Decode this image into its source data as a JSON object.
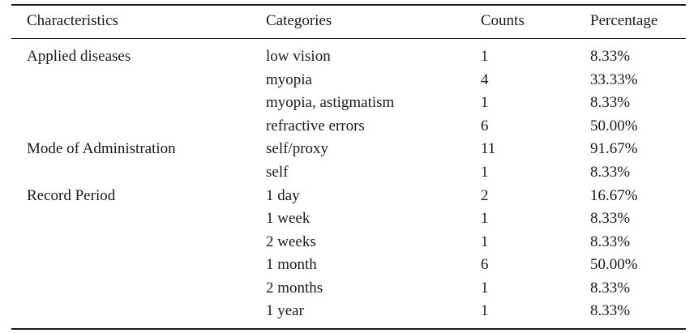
{
  "table": {
    "headers": {
      "characteristics": "Characteristics",
      "categories": "Categories",
      "counts": "Counts",
      "percentage": "Percentage"
    },
    "groups": [
      {
        "label": "Applied diseases",
        "rows": [
          {
            "category": "low vision",
            "count": "1",
            "percentage": "8.33%"
          },
          {
            "category": "myopia",
            "count": "4",
            "percentage": "33.33%"
          },
          {
            "category": "myopia, astigmatism",
            "count": "1",
            "percentage": "8.33%"
          },
          {
            "category": "refractive errors",
            "count": "6",
            "percentage": "50.00%"
          }
        ]
      },
      {
        "label": "Mode of Administration",
        "rows": [
          {
            "category": "self/proxy",
            "count": "11",
            "percentage": "91.67%"
          },
          {
            "category": "self",
            "count": "1",
            "percentage": "8.33%"
          }
        ]
      },
      {
        "label": "Record Period",
        "rows": [
          {
            "category": "1 day",
            "count": "2",
            "percentage": "16.67%"
          },
          {
            "category": "1 week",
            "count": "1",
            "percentage": "8.33%"
          },
          {
            "category": "2 weeks",
            "count": "1",
            "percentage": "8.33%"
          },
          {
            "category": "1 month",
            "count": "6",
            "percentage": "50.00%"
          },
          {
            "category": "2 months",
            "count": "1",
            "percentage": "8.33%"
          },
          {
            "category": "1 year",
            "count": "1",
            "percentage": "8.33%"
          }
        ]
      }
    ]
  }
}
